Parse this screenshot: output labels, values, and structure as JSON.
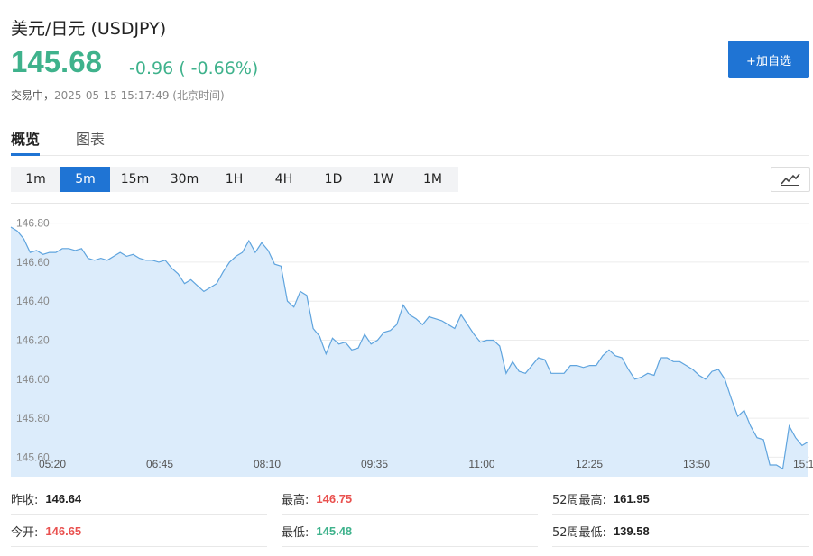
{
  "header": {
    "title": "美元/日元  (USDJPY)",
    "price": "145.68",
    "change": "-0.96 ( -0.66%)",
    "status_label": "交易中，",
    "status_time": "2025-05-15 15:17:49 (北京时间)",
    "add_button_label": "+加自选"
  },
  "tabs": [
    {
      "label": "概览",
      "active": true
    },
    {
      "label": "图表",
      "active": false
    }
  ],
  "intervals": [
    {
      "label": "1m"
    },
    {
      "label": "5m",
      "active": true
    },
    {
      "label": "15m"
    },
    {
      "label": "30m"
    },
    {
      "label": "1H"
    },
    {
      "label": "4H"
    },
    {
      "label": "1D"
    },
    {
      "label": "1W"
    },
    {
      "label": "1M"
    }
  ],
  "chart_type_icon": "line-chart-icon",
  "colors": {
    "accent": "#1f74d4",
    "up": "#e9514f",
    "down": "#3fb28c",
    "line": "#5fa4de",
    "fill": "#dcecfb"
  },
  "chart_data": {
    "type": "area",
    "ylim": [
      145.5,
      146.9
    ],
    "y_ticks": [
      "146.80",
      "146.60",
      "146.40",
      "146.20",
      "146.00",
      "145.80",
      "145.60"
    ],
    "x_ticks": [
      "05:20",
      "06:45",
      "08:10",
      "09:35",
      "11:00",
      "12:25",
      "13:50",
      "15:1"
    ],
    "values": [
      146.78,
      146.76,
      146.72,
      146.65,
      146.66,
      146.64,
      146.65,
      146.65,
      146.67,
      146.67,
      146.66,
      146.67,
      146.62,
      146.61,
      146.62,
      146.61,
      146.63,
      146.65,
      146.63,
      146.64,
      146.62,
      146.61,
      146.61,
      146.6,
      146.61,
      146.57,
      146.54,
      146.49,
      146.51,
      146.48,
      146.45,
      146.47,
      146.49,
      146.55,
      146.6,
      146.63,
      146.65,
      146.71,
      146.65,
      146.7,
      146.66,
      146.59,
      146.58,
      146.4,
      146.37,
      146.45,
      146.43,
      146.26,
      146.22,
      146.13,
      146.21,
      146.18,
      146.19,
      146.15,
      146.16,
      146.23,
      146.18,
      146.2,
      146.24,
      146.25,
      146.28,
      146.38,
      146.33,
      146.31,
      146.28,
      146.32,
      146.31,
      146.3,
      146.28,
      146.26,
      146.33,
      146.28,
      146.23,
      146.19,
      146.2,
      146.2,
      146.17,
      146.03,
      146.09,
      146.04,
      146.03,
      146.07,
      146.11,
      146.1,
      146.03,
      146.03,
      146.03,
      146.07,
      146.07,
      146.06,
      146.07,
      146.07,
      146.12,
      146.15,
      146.12,
      146.11,
      146.05,
      146.0,
      146.01,
      146.03,
      146.02,
      146.11,
      146.11,
      146.09,
      146.09,
      146.07,
      146.05,
      146.02,
      146.0,
      146.04,
      146.05,
      146.0,
      145.9,
      145.81,
      145.84,
      145.76,
      145.7,
      145.69,
      145.56,
      145.56,
      145.54,
      145.76,
      145.7,
      145.66,
      145.68
    ]
  },
  "stats": [
    [
      {
        "label": "昨收:",
        "value": "146.64",
        "tone": "neutral"
      },
      {
        "label": "最高:",
        "value": "146.75",
        "tone": "red"
      },
      {
        "label": "52周最高:",
        "value": "161.95",
        "tone": "neutral"
      }
    ],
    [
      {
        "label": "今开:",
        "value": "146.65",
        "tone": "red"
      },
      {
        "label": "最低:",
        "value": "145.48",
        "tone": "green"
      },
      {
        "label": "52周最低:",
        "value": "139.58",
        "tone": "neutral"
      }
    ]
  ]
}
